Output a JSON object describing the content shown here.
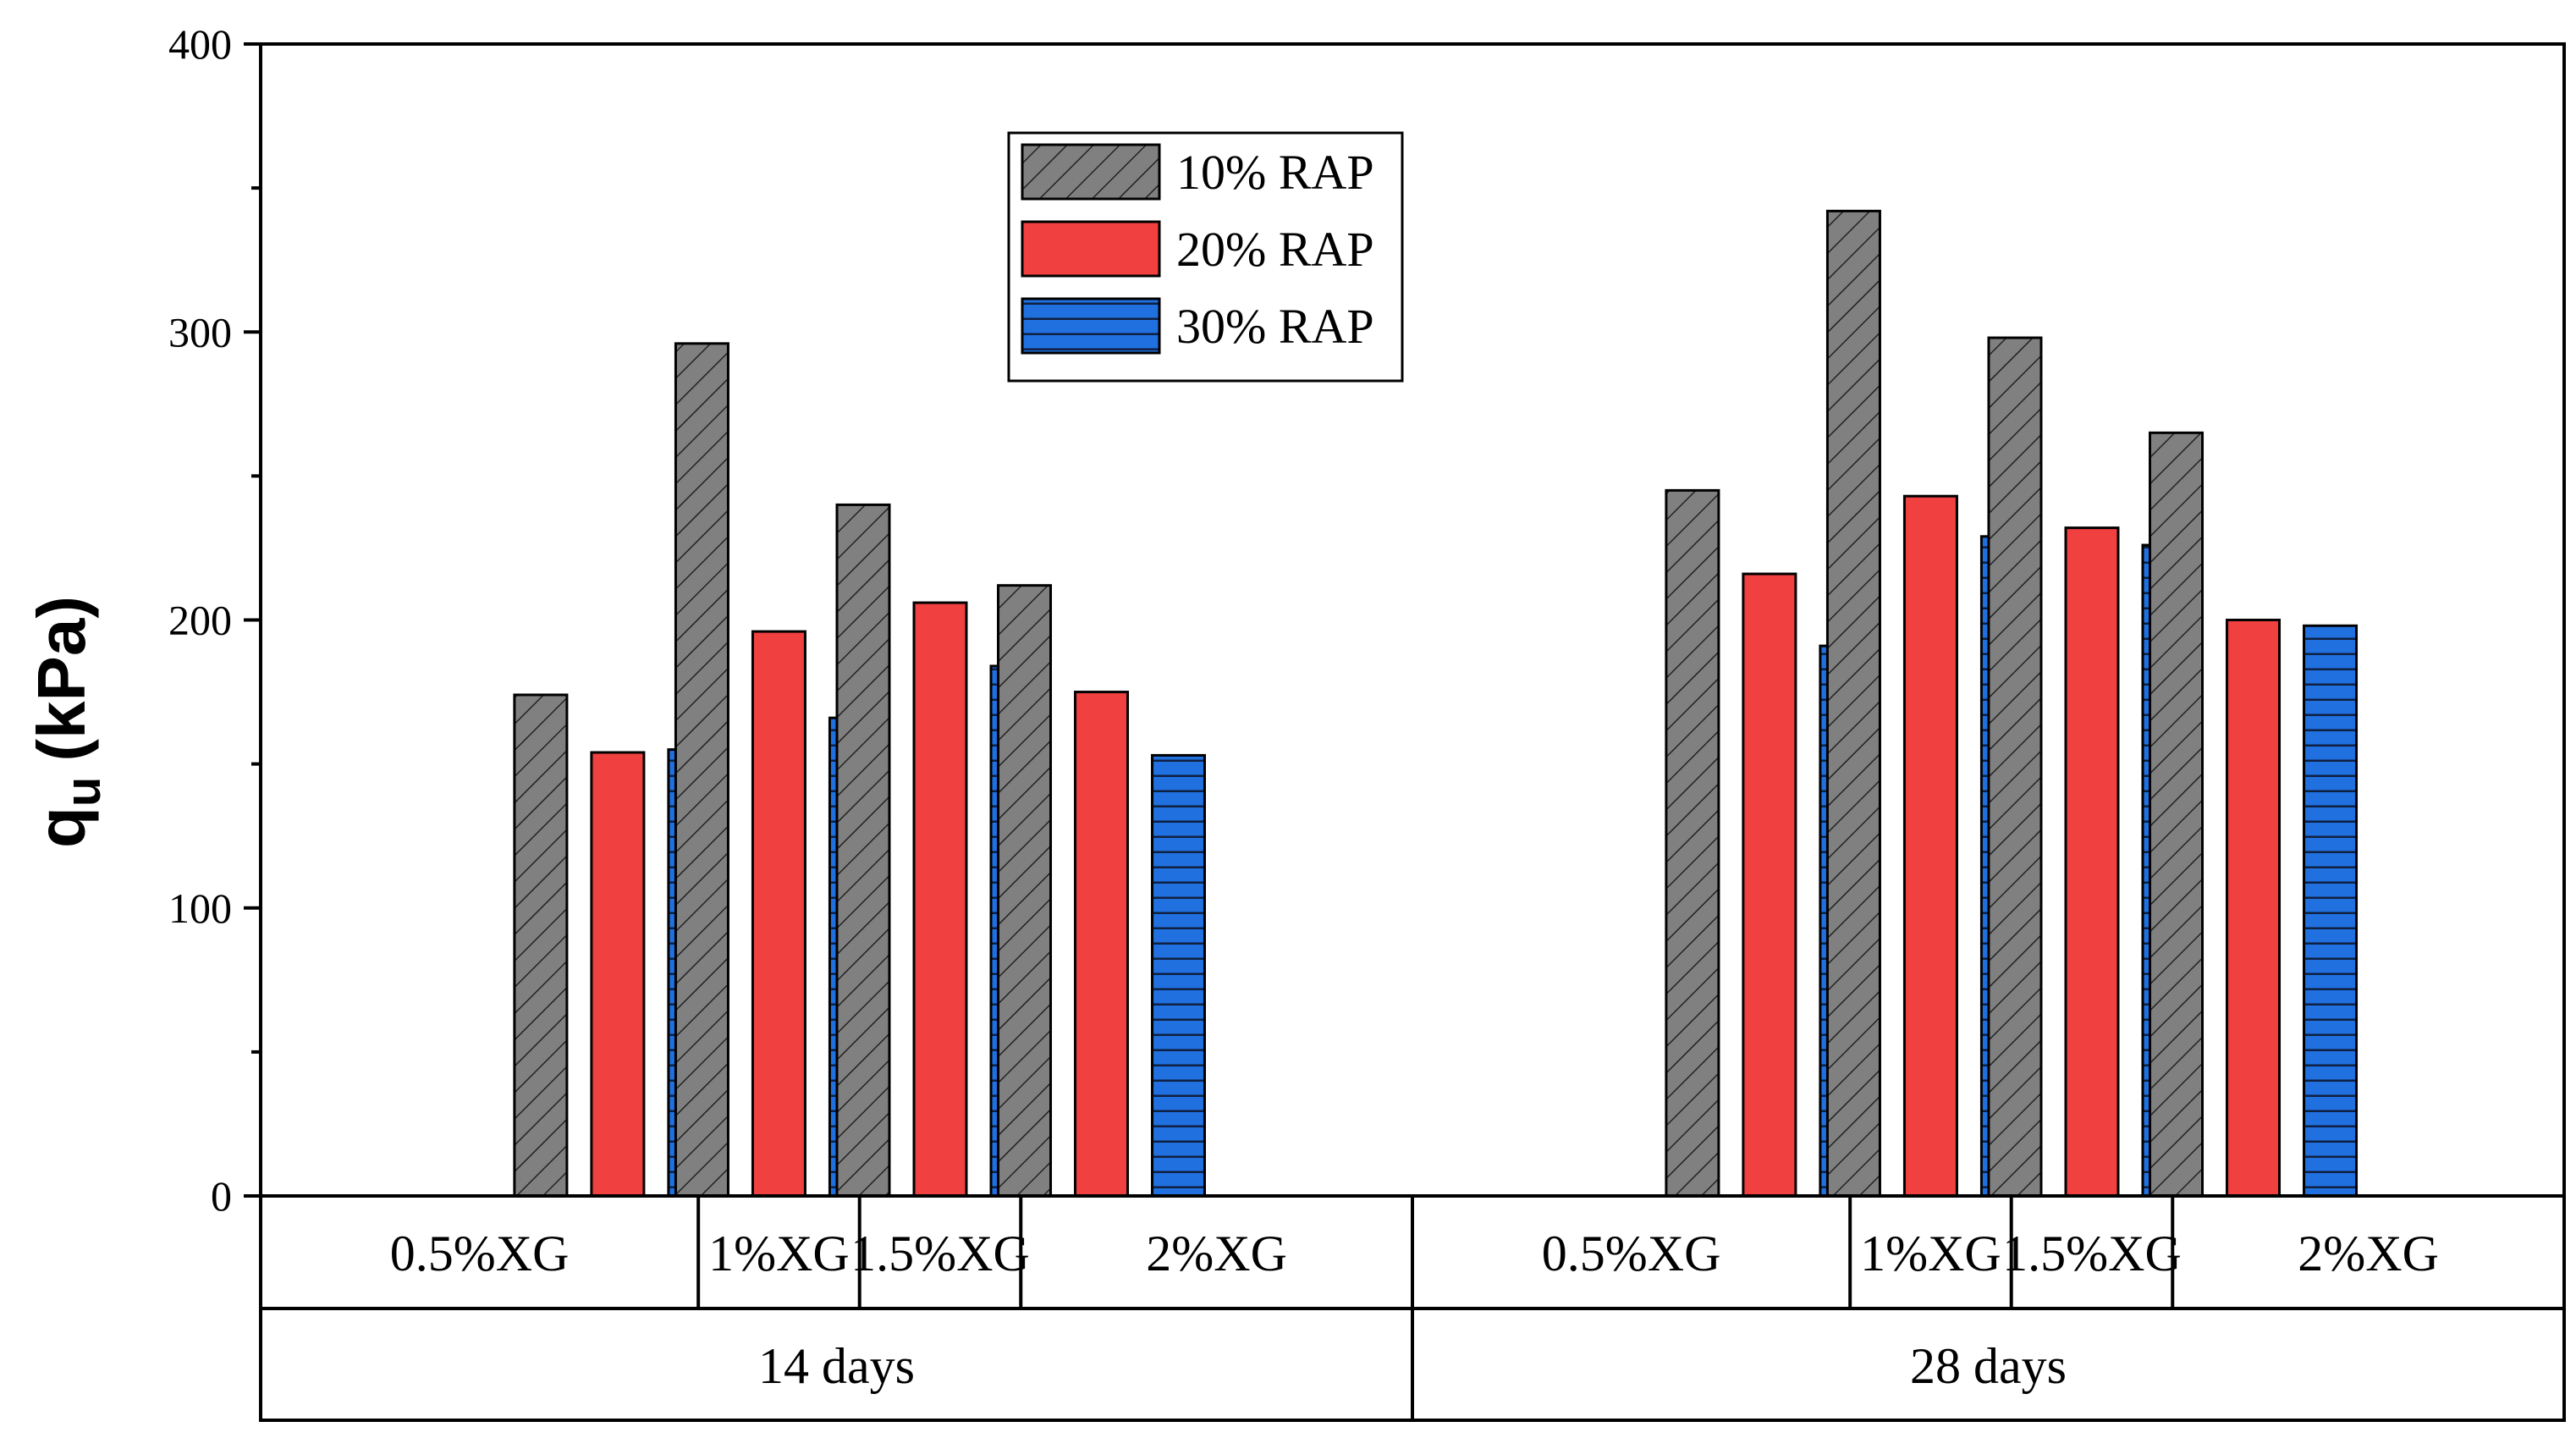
{
  "chart_data": {
    "type": "bar",
    "ylabel_main": "q",
    "ylabel_sub": "u",
    "ylabel_unit": "(kPa)",
    "ylim": [
      0,
      400
    ],
    "yticks": [
      "0",
      "100",
      "200",
      "300",
      "400"
    ],
    "groups": [
      {
        "label": "14 days",
        "categories": [
          "0.5%XG",
          "1%XG",
          "1.5%XG",
          "2%XG"
        ]
      },
      {
        "label": "28 days",
        "categories": [
          "0.5%XG",
          "1%XG",
          "1.5%XG",
          "2%XG"
        ]
      }
    ],
    "series": [
      {
        "name": "10% RAP",
        "color": "#808080",
        "pattern": "diagonal",
        "values": [
          174,
          296,
          240,
          212,
          245,
          342,
          298,
          265
        ]
      },
      {
        "name": "20% RAP",
        "color": "#f04040",
        "pattern": "solid",
        "values": [
          154,
          196,
          206,
          175,
          216,
          243,
          232,
          200
        ]
      },
      {
        "name": "30% RAP",
        "color": "#2070e0",
        "pattern": "horizontal",
        "values": [
          155,
          166,
          184,
          153,
          191,
          229,
          226,
          198
        ]
      }
    ],
    "legend_position": "top-center",
    "grid": false
  }
}
